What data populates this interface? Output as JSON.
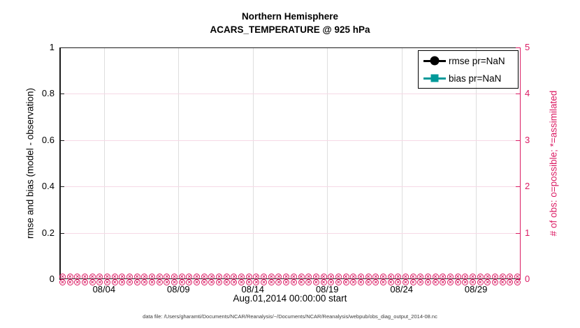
{
  "title": {
    "line1": "Northern Hemisphere",
    "line2": "ACARS_TEMPERATURE @ 925 hPa"
  },
  "left_axis": {
    "label": "rmse and bias (model - observation)",
    "ticks": [
      "0",
      "0.2",
      "0.4",
      "0.6",
      "0.8",
      "1"
    ],
    "color": "#000000"
  },
  "right_axis": {
    "label": "# of obs: o=possible; *=assimilated",
    "ticks": [
      "0",
      "1",
      "2",
      "3",
      "4",
      "5"
    ],
    "color": "#db1c64"
  },
  "x_axis": {
    "ticks": [
      "08/04",
      "08/09",
      "08/14",
      "08/19",
      "08/24",
      "08/29"
    ],
    "label": "Aug.01,2014 00:00:00 start"
  },
  "legend": [
    {
      "label": "rmse pr=NaN",
      "color": "#000000",
      "marker": "circle"
    },
    {
      "label": "bias pr=NaN",
      "color": "#009999",
      "marker": "square"
    }
  ],
  "obs_band": {
    "per_row": 62,
    "rows": 2,
    "glyph": "×",
    "color": "#db1c64"
  },
  "footer": "data file: /Users/gharamti/Documents/NCAR/Reanalysis/~/Documents/NCAR/Reanalysis/webpub/obs_diag_output_2014-08.nc",
  "colors": {
    "pink": "#db1c64",
    "pink_grid": "#f6d9e6",
    "gray_grid": "#dedede",
    "teal": "#009999"
  },
  "chart_data": {
    "type": "line",
    "title": "Northern Hemisphere — ACARS_TEMPERATURE @ 925 hPa",
    "xlabel": "Aug.01,2014 00:00:00 start",
    "x_tick_labels": [
      "08/04",
      "08/09",
      "08/14",
      "08/19",
      "08/24",
      "08/29"
    ],
    "left_axis": {
      "label": "rmse and bias (model - observation)",
      "ylim": [
        0,
        1
      ],
      "ticks": [
        0,
        0.2,
        0.4,
        0.6,
        0.8,
        1
      ]
    },
    "right_axis": {
      "label": "# of obs: o=possible; *=assimilated",
      "ylim": [
        0,
        5
      ],
      "ticks": [
        0,
        1,
        2,
        3,
        4,
        5
      ]
    },
    "grid": true,
    "legend_position": "top-right-inside",
    "series": [
      {
        "name": "rmse pr=NaN",
        "axis": "left",
        "color": "#000000",
        "marker": "circle",
        "values": "NaN - no curve drawn"
      },
      {
        "name": "bias pr=NaN",
        "axis": "left",
        "color": "#009999",
        "marker": "square",
        "values": "NaN - no curve drawn"
      },
      {
        "name": "# of obs possible (o)",
        "axis": "right",
        "color": "#db1c64",
        "marker": "o",
        "constant_value": 0,
        "n_timesteps": 62
      },
      {
        "name": "# of obs assimilated (*)",
        "axis": "right",
        "color": "#db1c64",
        "marker": "*",
        "constant_value": 0,
        "n_timesteps": 62
      }
    ]
  }
}
